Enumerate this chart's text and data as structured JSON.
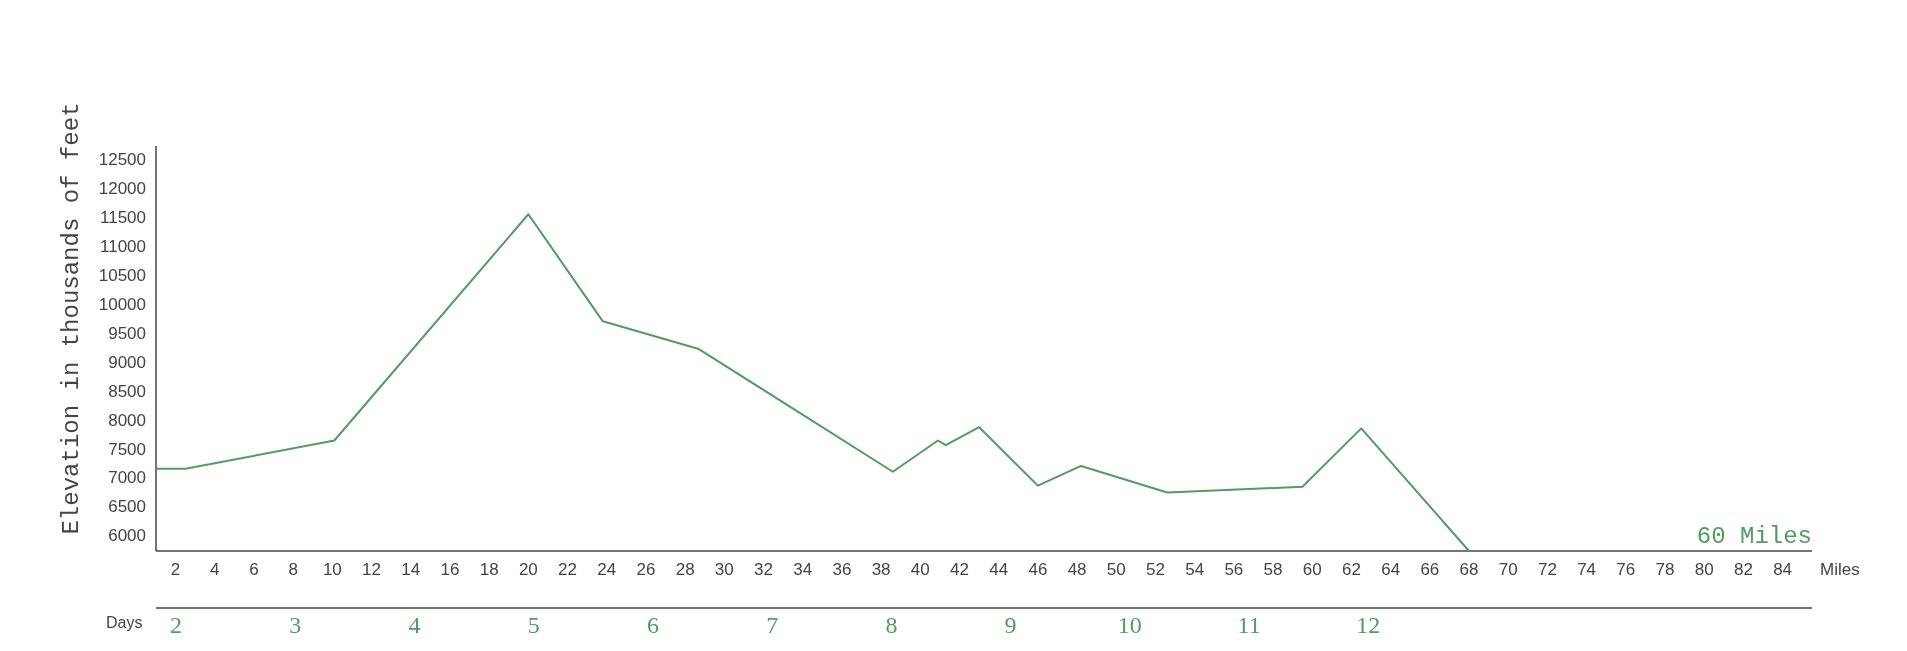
{
  "chart_data": {
    "type": "line",
    "xlabel": "Miles",
    "ylabel": "Elevation in thousands of feet",
    "series": [
      {
        "color": "#4f9e5e",
        "x": [
          1,
          2.5,
          10.1,
          20,
          23.8,
          28.7,
          38.6,
          40.9,
          41.3,
          43,
          46,
          48.2,
          52.6,
          59.5,
          62.5,
          68
        ],
        "values": [
          7150,
          7150,
          7640,
          11550,
          9700,
          9220,
          7100,
          7640,
          7560,
          7870,
          6860,
          7200,
          6740,
          6840,
          7850,
          5730
        ]
      }
    ],
    "xlim": [
      1,
      85.5
    ],
    "ylim": [
      5730,
      12730
    ],
    "xticks": [
      2,
      4,
      6,
      8,
      10,
      12,
      14,
      16,
      18,
      20,
      22,
      24,
      26,
      28,
      30,
      32,
      34,
      36,
      38,
      40,
      42,
      44,
      46,
      48,
      50,
      52,
      54,
      56,
      58,
      60,
      62,
      64,
      66,
      68,
      70,
      72,
      74,
      76,
      78,
      80,
      82,
      84
    ],
    "yticks": [
      6000,
      6500,
      7000,
      7500,
      8000,
      8500,
      9000,
      9500,
      10000,
      10500,
      11000,
      11500,
      12000,
      12500
    ],
    "annotations": [
      "Days",
      "60 Miles",
      "2",
      "3",
      "4",
      "5",
      "6",
      "7",
      "8",
      "9",
      "10",
      "11",
      "12"
    ],
    "grid": false,
    "marker": "none",
    "line_style": "solid"
  }
}
